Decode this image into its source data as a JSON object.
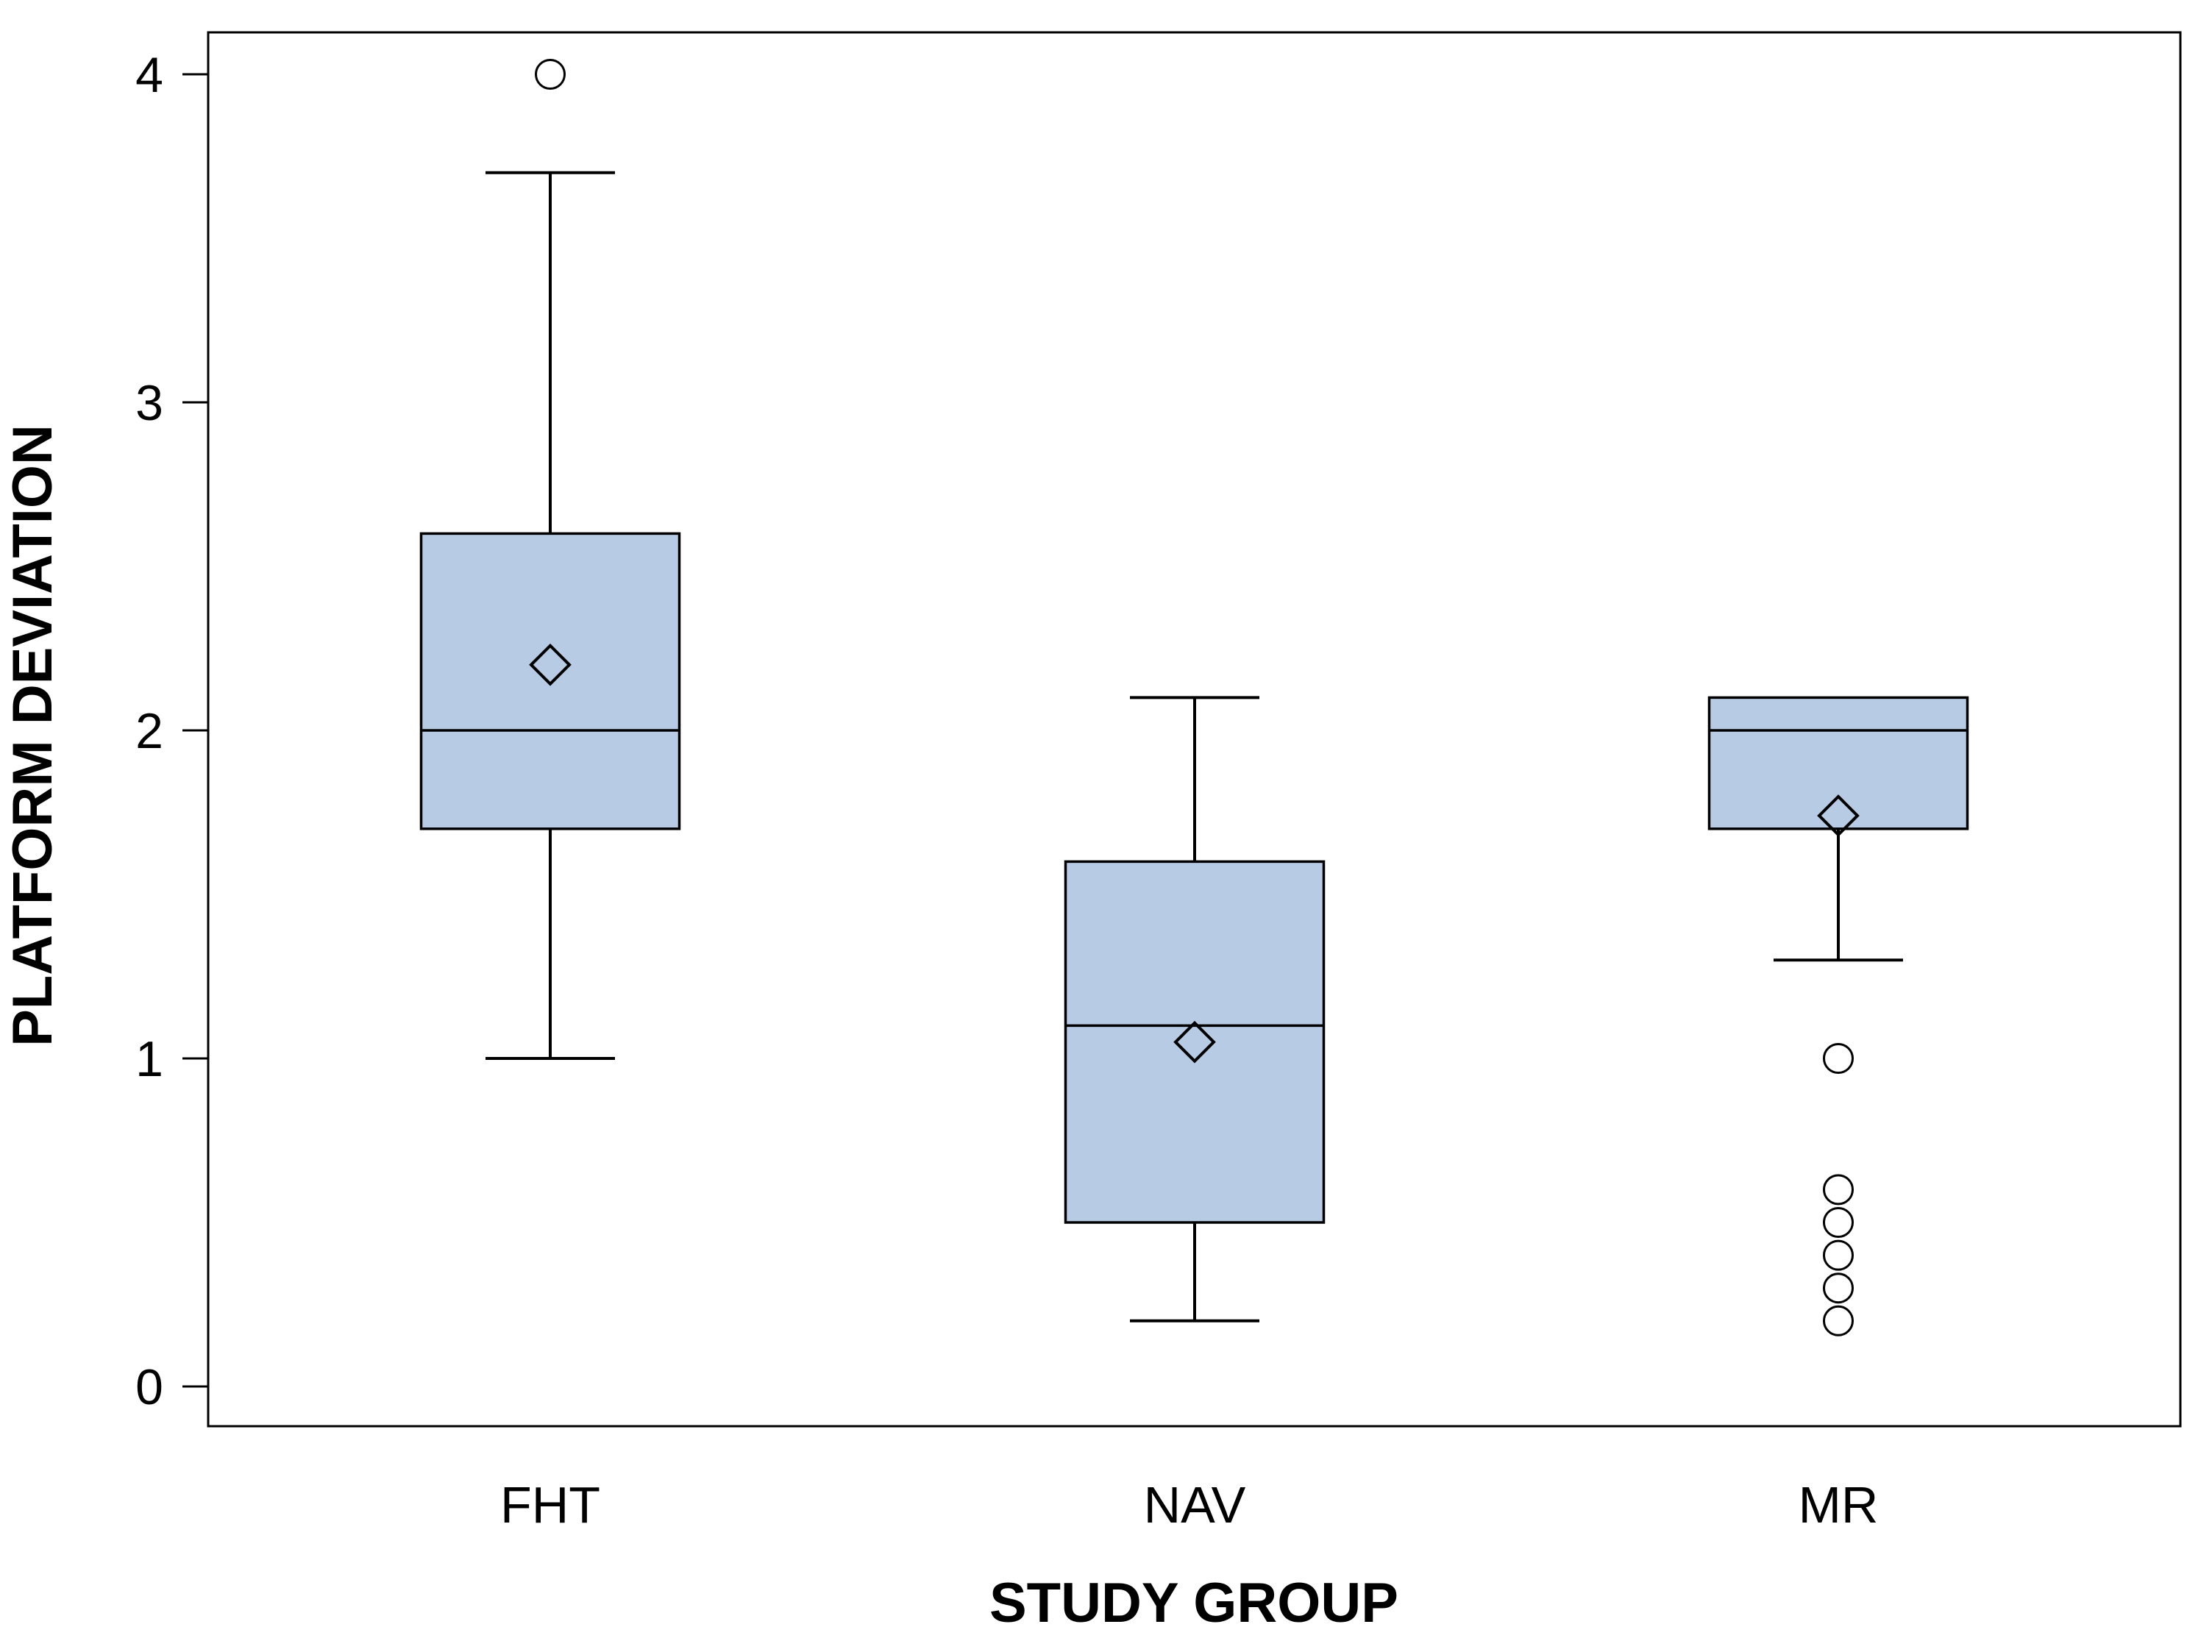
{
  "figure": {
    "background": "#ffffff"
  },
  "chart_data": {
    "type": "boxplot",
    "title": "",
    "xlabel": "STUDY GROUP",
    "ylabel": "PLATFORM DEVIATION",
    "categories": [
      "FHT",
      "NAV",
      "MR"
    ],
    "yticks": [
      "0",
      "1",
      "2",
      "3",
      "4"
    ],
    "ylim": [
      -0.13,
      4.13
    ],
    "grid": false,
    "legend": null,
    "box_fill": "#b7cce4",
    "line_color": "#000000",
    "boxes": [
      {
        "group": "FHT",
        "whisker_low": 1.0,
        "q1": 1.7,
        "median": 2.0,
        "q3": 2.6,
        "whisker_high": 3.7,
        "mean": 2.2,
        "outliers": [
          4.0
        ]
      },
      {
        "group": "NAV",
        "whisker_low": 0.2,
        "q1": 0.5,
        "median": 1.1,
        "q3": 1.6,
        "whisker_high": 2.1,
        "mean": 1.05,
        "outliers": []
      },
      {
        "group": "MR",
        "whisker_low": 1.3,
        "q1": 1.7,
        "median": 2.0,
        "q3": 2.1,
        "whisker_high": 2.1,
        "mean": 1.74,
        "outliers": [
          1.0,
          0.6,
          0.5,
          0.4,
          0.3,
          0.2
        ]
      }
    ]
  }
}
